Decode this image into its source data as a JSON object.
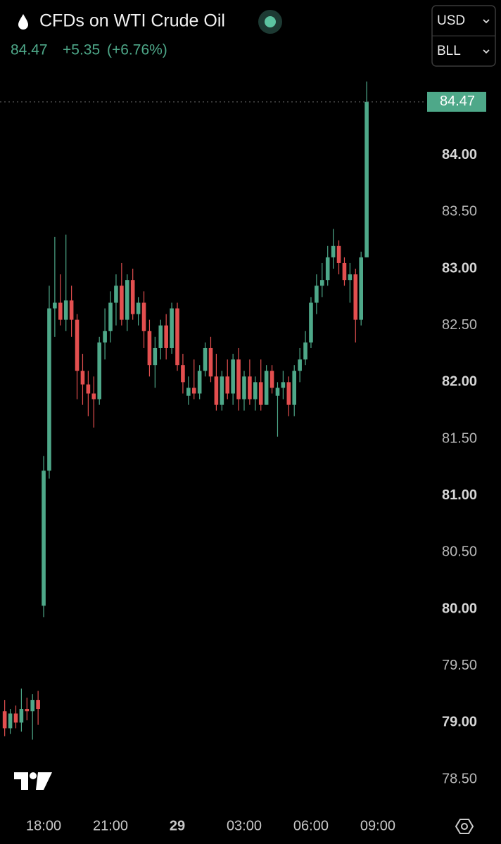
{
  "header": {
    "title": "CFDs on WTI Crude Oil",
    "price": "84.47",
    "change": "+5.35",
    "change_pct": "(+6.76%)",
    "currency": "USD",
    "unit": "BLL"
  },
  "chart_data": {
    "type": "candlestick",
    "up_color": "#4ea889",
    "down_color": "#e34f4f",
    "last_price": 84.47,
    "x": [
      16.25,
      16.5,
      16.75,
      17,
      17.25,
      17.5,
      17.75,
      18,
      18.25,
      18.5,
      18.75,
      19,
      19.25,
      19.5,
      19.75,
      20,
      20.25,
      20.5,
      20.75,
      21,
      21.25,
      21.5,
      21.75,
      22,
      22.25,
      22.5,
      22.75,
      23,
      23.25,
      23.5,
      23.75,
      24,
      24.25,
      24.5,
      24.75,
      25,
      25.25,
      25.5,
      25.75,
      26,
      26.25,
      26.5,
      26.75,
      27,
      27.25,
      27.5,
      27.75,
      28,
      28.25,
      28.5,
      28.75,
      29,
      29.25,
      29.5,
      29.75,
      30,
      30.25,
      30.5,
      30.75,
      31,
      31.25,
      31.5,
      31.75,
      32,
      32.25,
      32.5
    ],
    "series": [
      {
        "open": [
          79.1,
          78.95,
          79.08,
          79.0,
          79.12,
          79.1,
          79.2,
          80.03,
          81.22,
          82.65,
          82.7,
          82.55,
          82.72,
          82.55,
          82.1,
          81.98,
          81.9,
          81.85,
          82.35,
          82.45,
          82.7,
          82.85,
          82.55,
          82.9,
          82.6,
          82.7,
          82.45,
          82.15,
          82.3,
          82.5,
          82.3,
          82.65,
          82.15,
          81.88,
          81.95,
          81.9,
          82.1,
          82.3,
          82.05,
          81.8,
          82.05,
          81.9,
          82.2,
          81.85,
          82.05,
          81.85,
          82.0,
          81.8,
          82.1,
          81.88,
          81.95,
          82.0,
          81.8,
          82.1,
          82.2,
          82.35,
          82.7,
          82.85,
          82.9,
          83.1,
          83.2,
          83.05,
          82.9,
          82.95,
          82.55,
          83.1
        ],
        "high": [
          79.2,
          79.12,
          79.15,
          79.3,
          79.22,
          79.25,
          79.28,
          81.35,
          82.85,
          83.28,
          82.95,
          83.3,
          82.85,
          82.6,
          82.25,
          82.1,
          82.05,
          82.4,
          82.65,
          82.8,
          82.95,
          83.05,
          82.95,
          83.0,
          82.75,
          82.8,
          82.55,
          82.4,
          82.55,
          82.6,
          82.7,
          82.7,
          82.25,
          82.05,
          82.2,
          82.15,
          82.35,
          82.4,
          82.25,
          82.1,
          82.2,
          82.25,
          82.3,
          82.1,
          82.2,
          82.05,
          82.2,
          82.15,
          82.15,
          82.0,
          82.1,
          82.05,
          82.15,
          82.3,
          82.45,
          82.75,
          82.95,
          83.05,
          83.2,
          83.35,
          83.25,
          83.1,
          83.05,
          83.0,
          83.15,
          84.65
        ],
        "low": [
          78.88,
          78.9,
          78.95,
          78.92,
          79.02,
          78.85,
          78.98,
          79.93,
          81.15,
          82.4,
          82.5,
          82.45,
          82.4,
          81.85,
          81.8,
          81.7,
          81.6,
          81.8,
          82.2,
          82.35,
          82.5,
          82.5,
          82.45,
          82.55,
          82.5,
          82.3,
          82.05,
          81.95,
          82.2,
          82.2,
          82.25,
          82.1,
          81.9,
          81.8,
          81.85,
          81.85,
          82.05,
          82.0,
          81.75,
          81.75,
          81.85,
          81.8,
          81.75,
          81.75,
          81.8,
          81.75,
          81.75,
          81.8,
          81.9,
          81.52,
          81.85,
          81.7,
          81.7,
          82.0,
          82.15,
          82.3,
          82.6,
          82.75,
          82.85,
          83.0,
          82.95,
          82.85,
          82.7,
          82.35,
          82.5,
          83.1
        ],
        "close": [
          78.95,
          79.08,
          79.0,
          79.12,
          79.1,
          79.2,
          79.12,
          81.22,
          82.65,
          82.7,
          82.55,
          82.72,
          82.55,
          82.1,
          81.98,
          81.9,
          81.85,
          82.35,
          82.45,
          82.7,
          82.85,
          82.55,
          82.9,
          82.6,
          82.7,
          82.45,
          82.15,
          82.3,
          82.5,
          82.3,
          82.65,
          82.15,
          82.0,
          81.95,
          81.9,
          82.1,
          82.3,
          82.05,
          81.8,
          82.05,
          81.9,
          82.2,
          81.85,
          82.05,
          81.85,
          82.0,
          81.8,
          82.1,
          81.95,
          81.95,
          82.0,
          81.8,
          82.1,
          82.2,
          82.35,
          82.7,
          82.85,
          82.9,
          83.1,
          83.2,
          83.05,
          82.9,
          82.95,
          82.55,
          83.1,
          84.47
        ]
      }
    ],
    "xlim": [
      16.04,
      35.15
    ],
    "ylim": [
      78.24,
      84.81
    ],
    "xticks": [
      {
        "value": 18,
        "label": "18:00"
      },
      {
        "value": 21,
        "label": "21:00"
      },
      {
        "value": 24,
        "label": "29"
      },
      {
        "value": 27,
        "label": "03:00"
      },
      {
        "value": 30,
        "label": "06:00"
      },
      {
        "value": 33,
        "label": "09:00"
      }
    ],
    "yticks": [
      {
        "value": 78.5,
        "label": "78.50"
      },
      {
        "value": 79,
        "label": "79.00"
      },
      {
        "value": 79.5,
        "label": "79.50"
      },
      {
        "value": 80,
        "label": "80.00"
      },
      {
        "value": 80.5,
        "label": "80.50"
      },
      {
        "value": 81,
        "label": "81.00"
      },
      {
        "value": 81.5,
        "label": "81.50"
      },
      {
        "value": 82,
        "label": "82.00"
      },
      {
        "value": 82.5,
        "label": "82.50"
      },
      {
        "value": 83,
        "label": "83.00"
      },
      {
        "value": 83.5,
        "label": "83.50"
      },
      {
        "value": 84,
        "label": "84.00"
      }
    ]
  }
}
